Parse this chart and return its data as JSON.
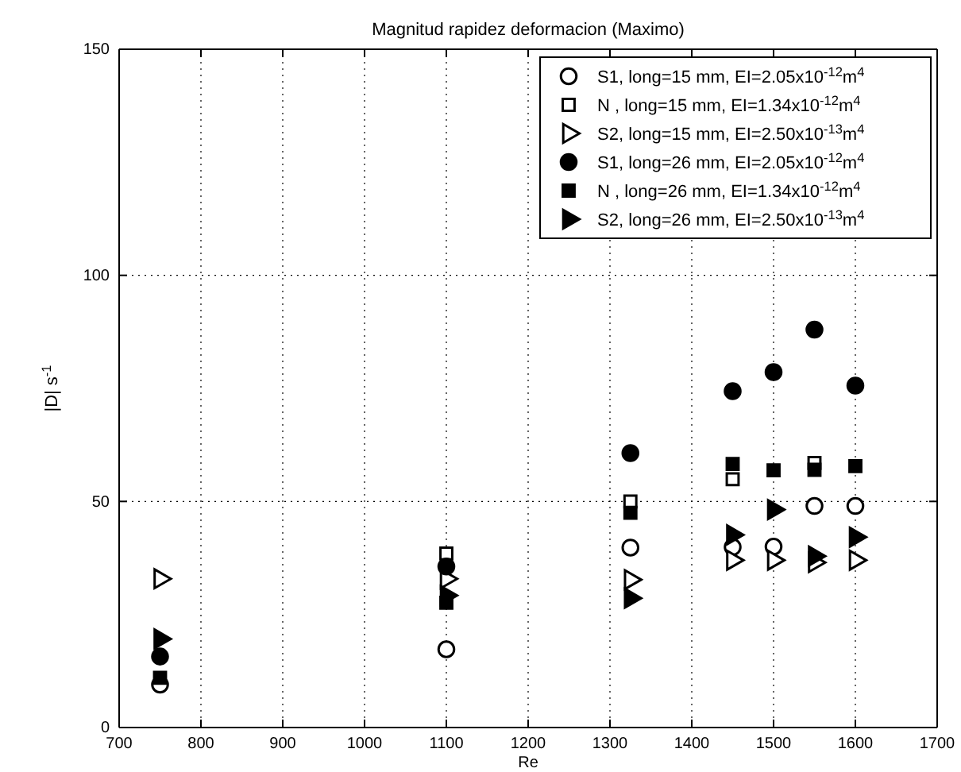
{
  "chart_data": {
    "type": "scatter",
    "title": "Magnitud rapidez deformacion (Maximo)",
    "xlabel": "Re",
    "ylabel": "|D| s$^{-1}$",
    "x": [
      750,
      1100,
      1325,
      1450,
      1500,
      1550,
      1600
    ],
    "xlim": [
      700,
      1700
    ],
    "xticks": [
      700,
      800,
      900,
      1000,
      1100,
      1200,
      1300,
      1400,
      1500,
      1600,
      1700
    ],
    "ylim": [
      0,
      150
    ],
    "yticks": [
      0,
      50,
      100,
      150
    ],
    "grid": true,
    "legend": "top right",
    "series": [
      {
        "name": "S1, long=15 mm, EI=2.05x10$^{-12}$m$^{4}$",
        "color": "#000000",
        "marker": "circle",
        "values": [
          9.5,
          17.3,
          39.8,
          39.9,
          40,
          49,
          49
        ]
      },
      {
        "name": "N , long=15 mm, EI=1.34x10$^{-12}$m$^{4}$",
        "color": "#000000",
        "marker": "square",
        "values": [
          null,
          38.5,
          50,
          54.9,
          null,
          58.5,
          null
        ]
      },
      {
        "name": "S2, long=15 mm, EI=2.50x10$^{-13}$m$^{4}$",
        "color": "#000000",
        "marker": "triangle",
        "values": [
          32.9,
          32.9,
          32.7,
          37,
          37,
          36.5,
          37
        ]
      },
      {
        "name": "S1, long=26 mm, EI=2.05x10$^{-12}$m$^{4}$",
        "color": "#000000",
        "marker": "circle",
        "values": [
          15.7,
          35.6,
          60.7,
          74.4,
          78.6,
          88,
          75.6
        ]
      },
      {
        "name": "N , long=26 mm, EI=1.34x10$^{-12}$m$^{4}$",
        "color": "#000000",
        "marker": "square",
        "values": [
          11,
          27.6,
          47.5,
          58.3,
          56.9,
          57,
          57.8
        ]
      },
      {
        "name": "S2, long=26 mm, EI=2.50x10$^{-13}$m$^{4}$",
        "color": "#000000",
        "marker": "triangle",
        "values": [
          19.6,
          29.2,
          28.6,
          42.6,
          48.2,
          37.9,
          42.1
        ]
      }
    ]
  }
}
